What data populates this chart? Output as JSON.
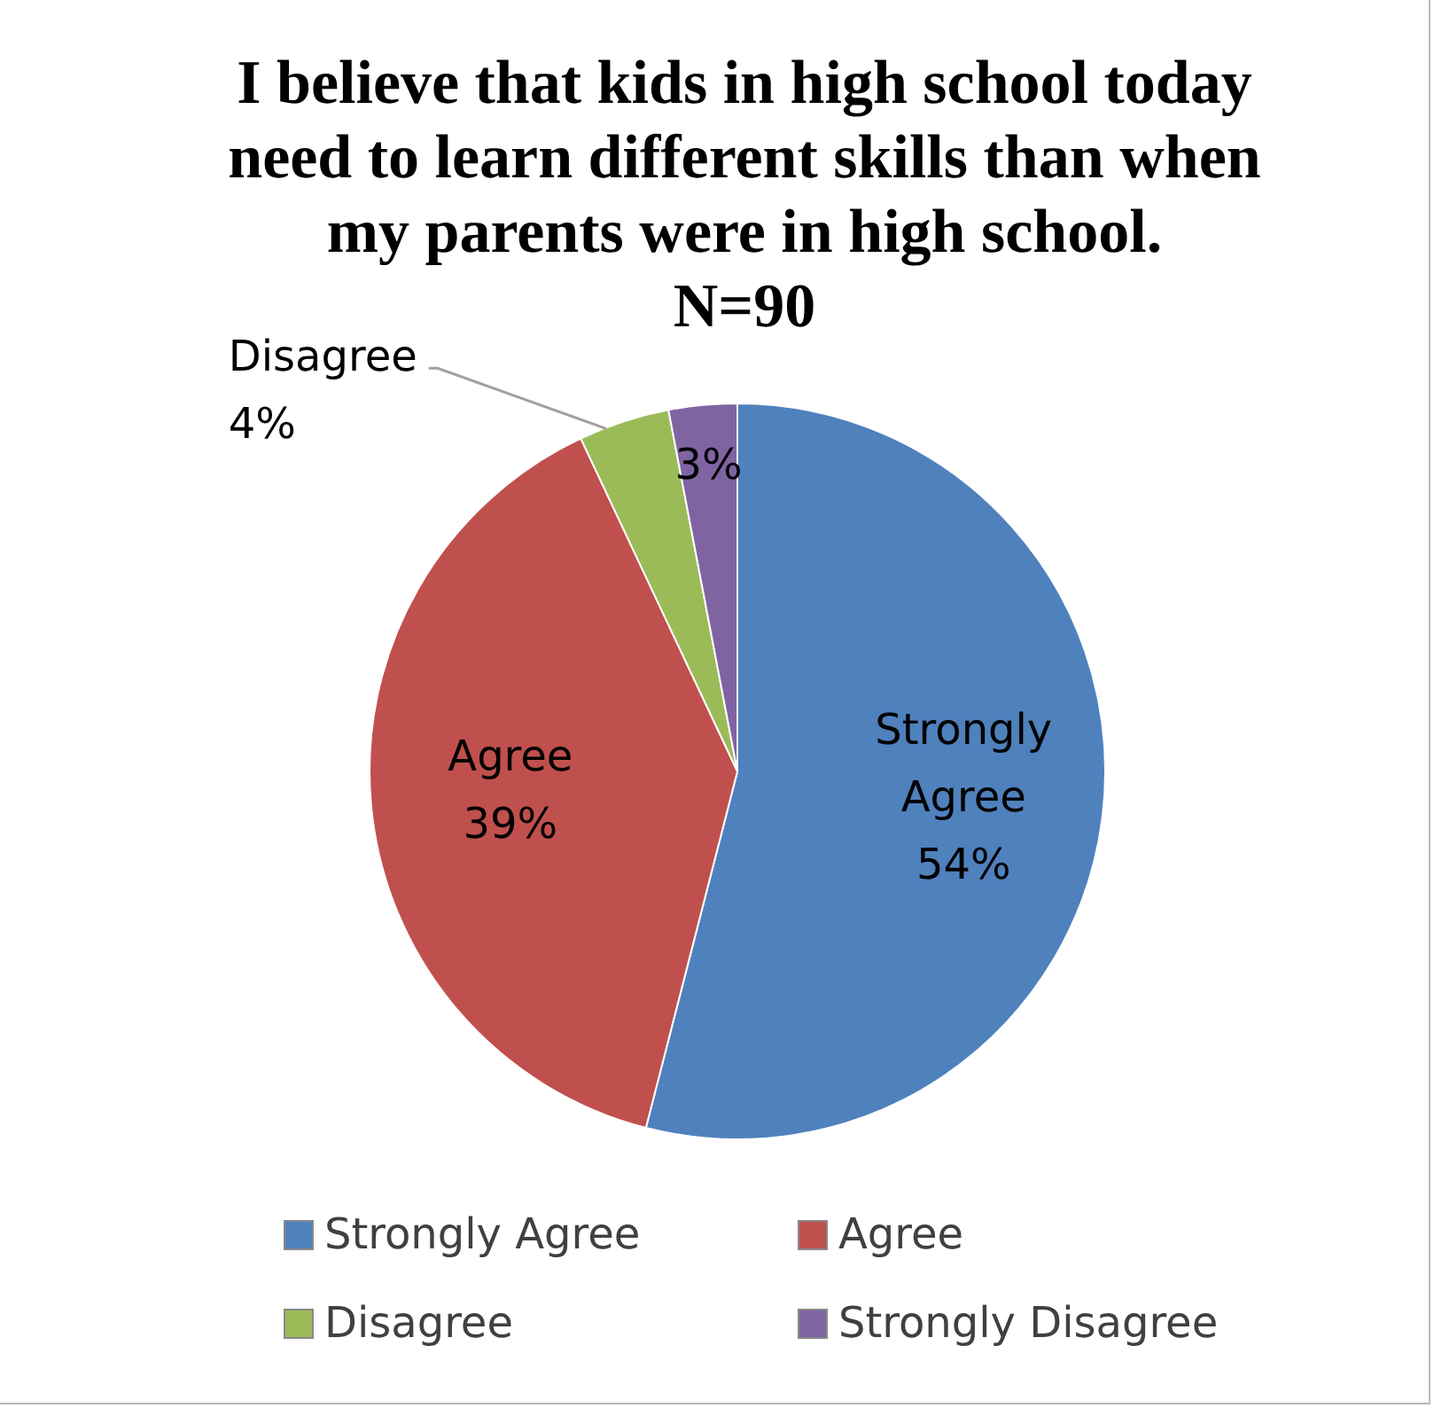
{
  "chart_data": {
    "type": "pie",
    "title": "I believe that kids in high school today need to learn different skills than when my parents were in high school.\nN=90",
    "categories": [
      "Strongly Agree",
      "Agree",
      "Disagree",
      "Strongly Disagree"
    ],
    "values": [
      54,
      39,
      4,
      3
    ],
    "colors": [
      "#4f81bd",
      "#c0504d",
      "#9bbb59",
      "#8064a2"
    ],
    "value_labels": [
      "Strongly\nAgree\n54%",
      "Agree\n39%",
      "Disagree\n4%",
      "3%"
    ],
    "legend": "bottom"
  }
}
